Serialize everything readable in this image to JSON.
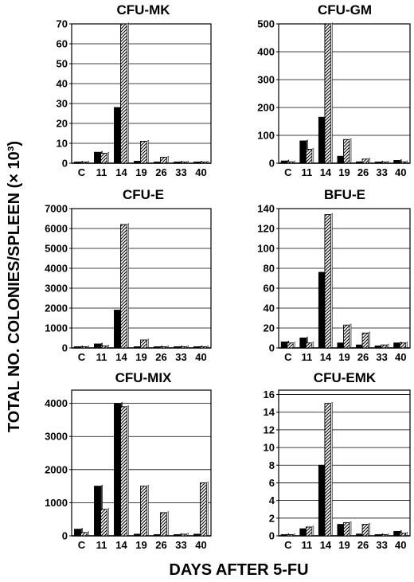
{
  "figure": {
    "ylabel": "TOTAL NO. COLONIES/SPLEEN (× 10³)",
    "xlabel": "DAYS AFTER 5-FU"
  },
  "chart_data": [
    {
      "type": "bar",
      "title": "CFU-MK",
      "categories": [
        "C",
        "11",
        "14",
        "19",
        "26",
        "33",
        "40"
      ],
      "yticks": [
        0,
        10,
        20,
        30,
        40,
        50,
        60,
        70
      ],
      "ylim": [
        0,
        70
      ],
      "series": [
        {
          "values": [
            0.5,
            5.5,
            28,
            1,
            0.5,
            0.3,
            0.3
          ],
          "fill": "#000000"
        },
        {
          "values": [
            0.5,
            5,
            70,
            11,
            3,
            0.5,
            0.3
          ],
          "fill": "hatch"
        }
      ]
    },
    {
      "type": "bar",
      "title": "CFU-GM",
      "categories": [
        "C",
        "11",
        "14",
        "19",
        "26",
        "33",
        "40"
      ],
      "yticks": [
        0,
        100,
        200,
        300,
        400,
        500
      ],
      "ylim": [
        0,
        500
      ],
      "series": [
        {
          "values": [
            8,
            80,
            165,
            25,
            5,
            3,
            10
          ],
          "fill": "#000000"
        },
        {
          "values": [
            5,
            50,
            500,
            85,
            15,
            3,
            5
          ],
          "fill": "hatch"
        }
      ]
    },
    {
      "type": "bar",
      "title": "CFU-E",
      "categories": [
        "C",
        "11",
        "14",
        "19",
        "26",
        "33",
        "40"
      ],
      "yticks": [
        0,
        1000,
        2000,
        3000,
        4000,
        5000,
        6000,
        7000
      ],
      "ylim": [
        0,
        7000
      ],
      "series": [
        {
          "values": [
            50,
            200,
            1900,
            50,
            20,
            10,
            20
          ],
          "fill": "#000000"
        },
        {
          "values": [
            50,
            100,
            6200,
            400,
            30,
            10,
            20
          ],
          "fill": "hatch"
        }
      ]
    },
    {
      "type": "bar",
      "title": "BFU-E",
      "categories": [
        "C",
        "11",
        "14",
        "19",
        "26",
        "33",
        "40"
      ],
      "yticks": [
        0,
        20,
        40,
        60,
        80,
        100,
        120,
        140
      ],
      "ylim": [
        0,
        140
      ],
      "series": [
        {
          "values": [
            6,
            10,
            76,
            5,
            3,
            2,
            5
          ],
          "fill": "#000000"
        },
        {
          "values": [
            5,
            5,
            134,
            23,
            15,
            3,
            5
          ],
          "fill": "hatch"
        }
      ]
    },
    {
      "type": "bar",
      "title": "CFU-MIX",
      "categories": [
        "C",
        "11",
        "14",
        "19",
        "26",
        "33",
        "40"
      ],
      "yticks": [
        0,
        1000,
        2000,
        3000,
        4000
      ],
      "ylim": [
        0,
        4400
      ],
      "series": [
        {
          "values": [
            200,
            1500,
            4000,
            50,
            30,
            30,
            50
          ],
          "fill": "#000000"
        },
        {
          "values": [
            100,
            800,
            3900,
            1500,
            700,
            50,
            1600
          ],
          "fill": "hatch"
        }
      ]
    },
    {
      "type": "bar",
      "title": "CFU-EMK",
      "categories": [
        "C",
        "11",
        "14",
        "19",
        "26",
        "33",
        "40"
      ],
      "yticks": [
        0,
        2,
        4,
        6,
        8,
        10,
        12,
        14,
        16
      ],
      "ylim": [
        0,
        16.5
      ],
      "series": [
        {
          "values": [
            0.1,
            0.8,
            8,
            1.3,
            0.2,
            0.1,
            0.5
          ],
          "fill": "#000000"
        },
        {
          "values": [
            0.1,
            1,
            15,
            1.5,
            1.3,
            0.1,
            0.3
          ],
          "fill": "hatch"
        }
      ]
    }
  ]
}
